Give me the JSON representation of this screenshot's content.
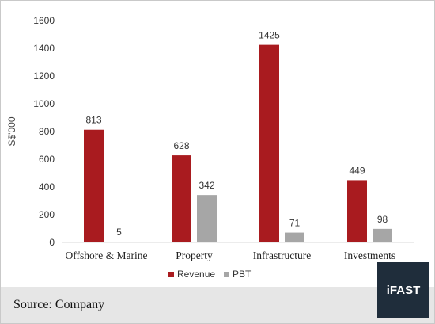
{
  "chart_data": {
    "type": "bar",
    "categories": [
      "Offshore & Marine",
      "Property",
      "Infrastructure",
      "Investments"
    ],
    "series": [
      {
        "name": "Revenue",
        "values": [
          813,
          628,
          1425,
          449
        ],
        "color": "#a91b1f"
      },
      {
        "name": "PBT",
        "values": [
          5,
          342,
          71,
          98
        ],
        "color": "#a6a6a6"
      }
    ],
    "ylabel": "S$'000",
    "ylim": [
      0,
      1600
    ],
    "yticks": [
      0,
      200,
      400,
      600,
      800,
      1000,
      1200,
      1400,
      1600
    ],
    "grid": false,
    "legend_position": "bottom"
  },
  "footer": {
    "source": "Source: Company",
    "brand": "iFAST"
  }
}
